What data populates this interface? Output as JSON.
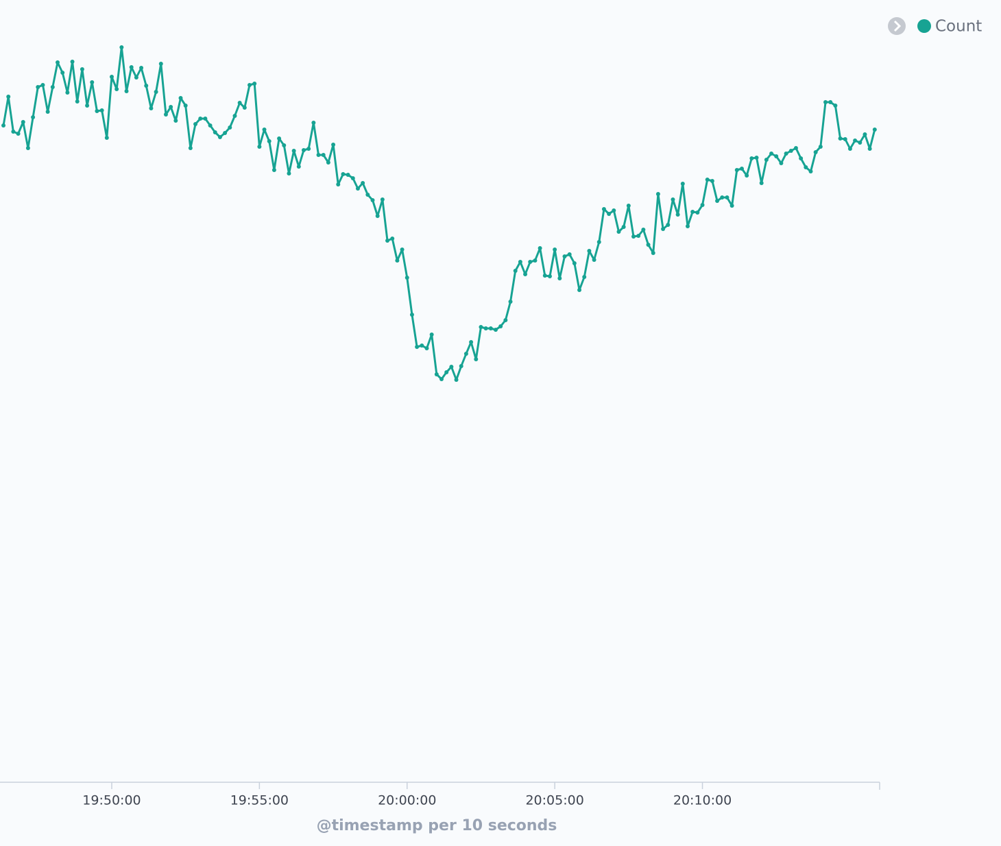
{
  "chart_data": {
    "type": "line",
    "x": [
      "19:46:20",
      "19:46:30",
      "19:46:40",
      "19:46:50",
      "19:47:00",
      "19:47:10",
      "19:47:20",
      "19:47:30",
      "19:47:40",
      "19:47:50",
      "19:48:00",
      "19:48:10",
      "19:48:20",
      "19:48:30",
      "19:48:40",
      "19:48:50",
      "19:49:00",
      "19:49:10",
      "19:49:20",
      "19:49:30",
      "19:49:40",
      "19:49:50",
      "19:50:00",
      "19:50:10",
      "19:50:20",
      "19:50:30",
      "19:50:40",
      "19:50:50",
      "19:51:00",
      "19:51:10",
      "19:51:20",
      "19:51:30",
      "19:51:40",
      "19:51:50",
      "19:52:00",
      "19:52:10",
      "19:52:20",
      "19:52:30",
      "19:52:40",
      "19:52:50",
      "19:53:00",
      "19:53:10",
      "19:53:20",
      "19:53:30",
      "19:53:40",
      "19:53:50",
      "19:54:00",
      "19:54:10",
      "19:54:20",
      "19:54:30",
      "19:54:40",
      "19:54:50",
      "19:55:00",
      "19:55:10",
      "19:55:20",
      "19:55:30",
      "19:55:40",
      "19:55:50",
      "19:56:00",
      "19:56:10",
      "19:56:20",
      "19:56:30",
      "19:56:40",
      "19:56:50",
      "19:57:00",
      "19:57:10",
      "19:57:20",
      "19:57:30",
      "19:57:40",
      "19:57:50",
      "19:58:00",
      "19:58:10",
      "19:58:20",
      "19:58:30",
      "19:58:40",
      "19:58:50",
      "19:59:00",
      "19:59:10",
      "19:59:20",
      "19:59:30",
      "19:59:40",
      "19:59:50",
      "20:00:00",
      "20:00:10",
      "20:00:20",
      "20:00:30",
      "20:00:40",
      "20:00:50",
      "20:01:00",
      "20:01:10",
      "20:01:20",
      "20:01:30",
      "20:01:40",
      "20:01:50",
      "20:02:00",
      "20:02:10",
      "20:02:20",
      "20:02:30",
      "20:02:40",
      "20:02:50",
      "20:03:00",
      "20:03:10",
      "20:03:20",
      "20:03:30",
      "20:03:40",
      "20:03:50",
      "20:04:00",
      "20:04:10",
      "20:04:20",
      "20:04:30",
      "20:04:40",
      "20:04:50",
      "20:05:00",
      "20:05:10",
      "20:05:20",
      "20:05:30",
      "20:05:40",
      "20:05:50",
      "20:06:00",
      "20:06:10",
      "20:06:20",
      "20:06:30",
      "20:06:40",
      "20:06:50",
      "20:07:00",
      "20:07:10",
      "20:07:20",
      "20:07:30",
      "20:07:40",
      "20:07:50",
      "20:08:00",
      "20:08:10",
      "20:08:20",
      "20:08:30",
      "20:08:40",
      "20:08:50",
      "20:09:00",
      "20:09:10",
      "20:09:20",
      "20:09:30",
      "20:09:40",
      "20:09:50",
      "20:10:00",
      "20:10:10",
      "20:10:20",
      "20:10:30",
      "20:10:40",
      "20:10:50",
      "20:11:00",
      "20:11:10",
      "20:11:20",
      "20:11:30",
      "20:11:40",
      "20:11:50",
      "20:12:00",
      "20:12:10",
      "20:12:20",
      "20:12:30",
      "20:12:40",
      "20:12:50",
      "20:13:00",
      "20:13:10",
      "20:13:20",
      "20:13:30",
      "20:13:40",
      "20:13:50",
      "20:14:00",
      "20:14:10",
      "20:14:20",
      "20:14:30",
      "20:14:40",
      "20:14:50",
      "20:15:00",
      "20:15:10",
      "20:15:20",
      "20:15:30",
      "20:15:40",
      "20:15:50"
    ],
    "series": [
      {
        "name": "Count",
        "color": "#17a393",
        "values": [
          958,
          1000,
          949,
          946,
          963,
          925,
          970,
          1014,
          1017,
          978,
          1014,
          1050,
          1035,
          1006,
          1051,
          993,
          1040,
          987,
          1021,
          979,
          980,
          940,
          1029,
          1011,
          1072,
          1008,
          1043,
          1028,
          1042,
          1016,
          983,
          1007,
          1048,
          974,
          985,
          965,
          998,
          987,
          925,
          960,
          968,
          968,
          958,
          948,
          941,
          947,
          955,
          972,
          991,
          984,
          1017,
          1019,
          927,
          952,
          935,
          893,
          939,
          929,
          888,
          921,
          898,
          922,
          924,
          962,
          915,
          915,
          904,
          930,
          872,
          887,
          886,
          881,
          866,
          874,
          857,
          849,
          826,
          850,
          790,
          793,
          761,
          777,
          736,
          682,
          635,
          637,
          633,
          653,
          595,
          588,
          598,
          606,
          587,
          607,
          625,
          642,
          617,
          664,
          662,
          662,
          660,
          665,
          674,
          701,
          746,
          759,
          741,
          759,
          761,
          779,
          739,
          738,
          777,
          735,
          767,
          770,
          757,
          718,
          737,
          775,
          762,
          788,
          836,
          829,
          834,
          803,
          810,
          841,
          796,
          797,
          806,
          784,
          772,
          858,
          807,
          813,
          850,
          828,
          873,
          811,
          832,
          831,
          842,
          879,
          877,
          848,
          853,
          853,
          841,
          893,
          895,
          885,
          910,
          911,
          874,
          908,
          917,
          913,
          903,
          917,
          921,
          925,
          910,
          897,
          891,
          919,
          927,
          992,
          992,
          987,
          939,
          938,
          924,
          936,
          933,
          945,
          924,
          952
        ]
      }
    ],
    "xlim": [
      "19:46:13",
      "20:16:00"
    ],
    "xticks": [
      "19:50:00",
      "19:55:00",
      "20:00:00",
      "20:05:00",
      "20:10:00"
    ],
    "ylim": [
      0,
      1120
    ],
    "x_label": "@timestamp per 10 seconds",
    "legend": "top-right"
  }
}
